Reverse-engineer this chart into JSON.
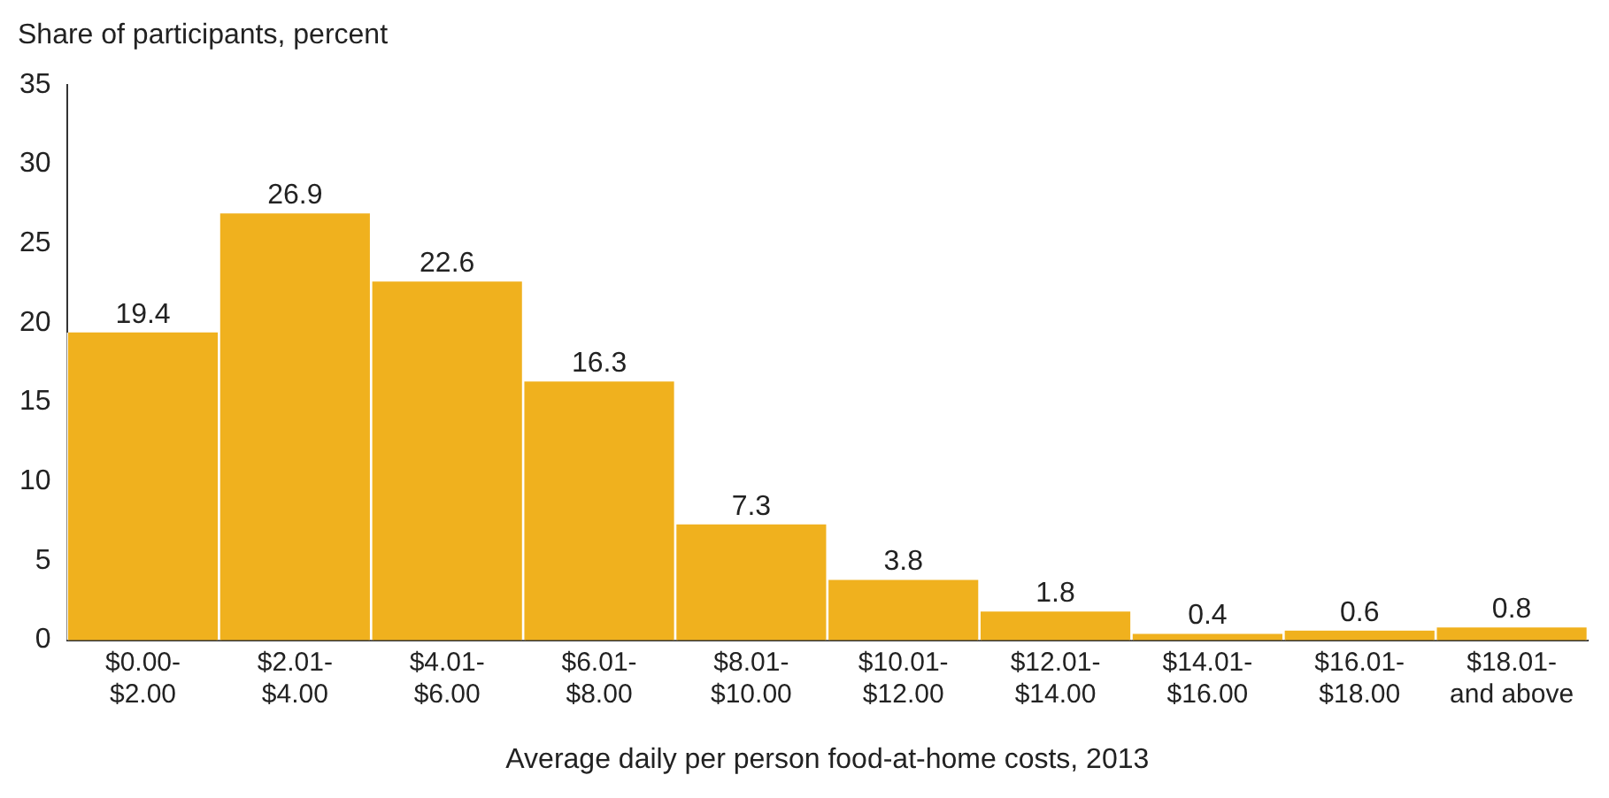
{
  "chart_data": {
    "type": "bar",
    "ylabel": "Share of participants, percent",
    "xlabel": "Average daily per person food-at-home costs, 2013",
    "categories": [
      "$0.00-\n$2.00",
      "$2.01-\n$4.00",
      "$4.01-\n$6.00",
      "$6.01-\n$8.00",
      "$8.01-\n$10.00",
      "$10.01-\n$12.00",
      "$12.01-\n$14.00",
      "$14.01-\n$16.00",
      "$16.01-\n$18.00",
      "$18.01-\nand above"
    ],
    "values": [
      19.4,
      26.9,
      22.6,
      16.3,
      7.3,
      3.8,
      1.8,
      0.4,
      0.6,
      0.8
    ],
    "color": "#f0b11e",
    "ylim": [
      0,
      35
    ],
    "yticks": [
      0,
      5,
      10,
      15,
      20,
      25,
      30,
      35
    ],
    "grid": false,
    "legend": false,
    "data_labels": true
  }
}
